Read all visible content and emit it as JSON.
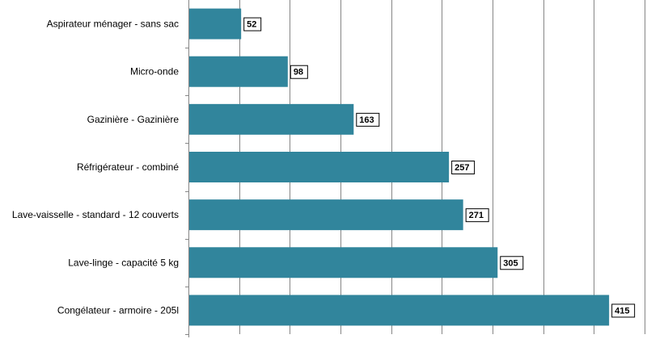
{
  "chart_data": {
    "type": "bar",
    "orientation": "horizontal",
    "categories": [
      "Aspirateur ménager - sans sac",
      "Micro-onde",
      "Gazinière - Gazinière",
      "Réfrigérateur - combiné",
      "Lave-vaisselle - standard - 12 couverts",
      "Lave-linge - capacité 5 kg",
      "Congélateur - armoire - 205l"
    ],
    "values": [
      52,
      98,
      163,
      257,
      271,
      305,
      415
    ],
    "data_labels": [
      "52",
      "98",
      "163",
      "257",
      "271",
      "305",
      "415"
    ],
    "xlim": [
      0,
      450
    ],
    "grid": true,
    "bar_color": "#31859c",
    "data_labels_shown": true
  }
}
